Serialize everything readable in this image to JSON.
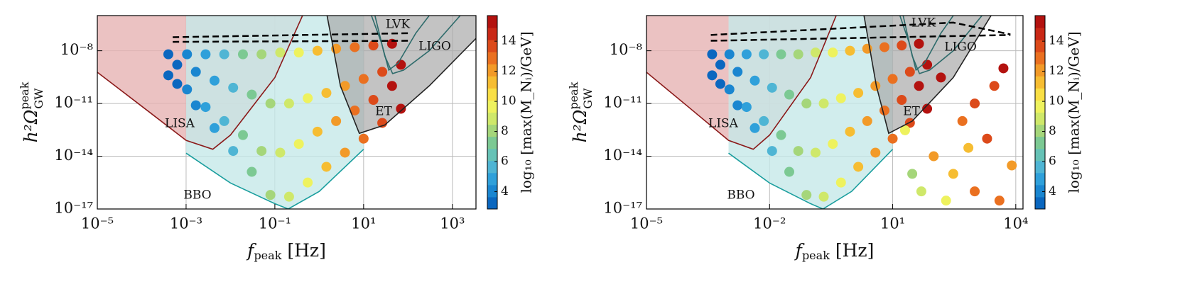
{
  "chart_data": [
    {
      "type": "scatter",
      "xlabel": {
        "symbol": "f",
        "sub": "peak",
        "unit": " [Hz]"
      },
      "ylabel": {
        "base": "h²Ω",
        "sub": "GW",
        "sup": "peak"
      },
      "xscale": "log",
      "yscale": "log",
      "grid": true,
      "xlim": [
        1e-05,
        3400
      ],
      "ylim": [
        1e-17,
        1e-06
      ],
      "xticks": [
        {
          "value": 1e-05,
          "label": "10⁻⁵"
        },
        {
          "value": 0.001,
          "label": "10⁻³"
        },
        {
          "value": 0.1,
          "label": "10⁻¹"
        },
        {
          "value": 10,
          "label": "10¹"
        },
        {
          "value": 1000,
          "label": "10³"
        }
      ],
      "yticks": [
        {
          "value": 1e-17,
          "label": "10⁻¹⁷"
        },
        {
          "value": 1e-14,
          "label": "10⁻¹⁴"
        },
        {
          "value": 1e-11,
          "label": "10⁻¹¹"
        },
        {
          "value": 1e-08,
          "label": "10⁻⁸"
        }
      ],
      "x": [
        0.000398,
        0.000631,
        0.000398,
        0.000631,
        0.00105,
        0.00166,
        0.00105,
        0.00166,
        0.00275,
        0.00437,
        0.00275,
        0.00437,
        0.00724,
        0.0115,
        0.00724,
        0.0115,
        0.0191,
        0.0302,
        0.0191,
        0.0302,
        0.0501,
        0.0794,
        0.0501,
        0.0794,
        0.132,
        0.209,
        0.132,
        0.209,
        0.347,
        0.55,
        0.347,
        0.55,
        0.912,
        1.45,
        0.912,
        1.45,
        2.4,
        3.8,
        2.4,
        3.8,
        6.31,
        10,
        6.31,
        10,
        16.6,
        26.3,
        16.6,
        26.3,
        43.7,
        69.2,
        43.7,
        69.2
      ],
      "values": [
        6.3e-09,
        1.6e-09,
        4e-10,
        1.3e-10,
        6.3e-09,
        6.3e-10,
        6.3e-11,
        7.9e-12,
        6.3e-09,
        2e-10,
        6.3e-12,
        4e-13,
        6.3e-09,
        7.9e-11,
        1e-12,
        2e-14,
        6.3e-09,
        3.2e-11,
        1.6e-13,
        1.3e-15,
        6.3e-09,
        1e-11,
        2e-14,
        6.3e-17,
        7.9e-09,
        1e-11,
        1.6e-14,
        5e-17,
        7.9e-09,
        2e-11,
        5e-14,
        3.2e-16,
        1e-08,
        4e-11,
        2.5e-13,
        2.5e-15,
        1.3e-08,
        1e-10,
        1e-12,
        1.6e-14,
        1.6e-08,
        2.5e-10,
        4e-12,
        1e-13,
        2e-08,
        6.3e-10,
        1.6e-11,
        7.9e-13,
        2.5e-08,
        1.6e-09,
        1e-10,
        5e-12
      ],
      "z": [
        3,
        3,
        3,
        3,
        4,
        4,
        4,
        4,
        5,
        5,
        5,
        5,
        6,
        6,
        6,
        6,
        7,
        7,
        7,
        7,
        8,
        8,
        8,
        8,
        9,
        9,
        9,
        9,
        10,
        10,
        10,
        10,
        11,
        11,
        11,
        11,
        12,
        12,
        12,
        12,
        13,
        13,
        13,
        13,
        14,
        14,
        14,
        14,
        15,
        15,
        15,
        15
      ],
      "curves": [
        {
          "name": "LISA",
          "color": "#8b1a1a",
          "fill": "#e6b3b3",
          "x": [
            1e-05,
            0.0001,
            0.001,
            0.004,
            0.01,
            0.1,
            0.42
          ],
          "values": [
            6e-10,
            7e-12,
            8e-14,
            2.5e-14,
            1.6e-13,
            3e-10,
            1e-06
          ]
        },
        {
          "name": "BBO",
          "color": "#1a9e9e",
          "fill": "#c6e8e9",
          "x": [
            0.001,
            0.01,
            0.1,
            0.2,
            1,
            10
          ],
          "values": [
            1.5e-14,
            3e-16,
            2e-17,
            1e-17,
            1e-16,
            2.5e-14
          ]
        },
        {
          "name": "ET",
          "color": "#222222",
          "fill": "#a9a9a9",
          "x": [
            1.5,
            3,
            8,
            30,
            300,
            3400
          ],
          "values": [
            1e-06,
            1e-10,
            2e-13,
            6e-13,
            1e-10,
            5e-08
          ]
        },
        {
          "name": "LVK",
          "color": "#2e6b6b",
          "x": [
            15,
            25,
            37,
            60,
            150,
            300
          ],
          "values": [
            1e-06,
            3e-08,
            8e-10,
            2e-09,
            1e-07,
            1e-06
          ]
        },
        {
          "name": "LIGO",
          "color": "#2e6b6b",
          "x": [
            18,
            30,
            45,
            80,
            300,
            1500
          ],
          "values": [
            1e-06,
            5e-09,
            5e-10,
            8e-10,
            1e-08,
            1e-06
          ]
        },
        {
          "color": "#000000",
          "dash": true,
          "x": [
            0.0005,
            117
          ],
          "values": [
            5.9e-08,
            1e-07
          ]
        },
        {
          "color": "#000000",
          "dash": true,
          "x": [
            0.0005,
            117
          ],
          "values": [
            3.2e-08,
            3.7e-08
          ]
        }
      ],
      "colorbar": {
        "label": "log₁₀ [max(M_Nᵢ)/GeV]",
        "clim": [
          2.85,
          15.7
        ],
        "ticks": [
          4,
          6,
          8,
          10,
          12,
          14
        ],
        "colormap": [
          "#0b67bf",
          "#1a86d0",
          "#2fa0da",
          "#4fb5d4",
          "#66c2b6",
          "#7cc993",
          "#a5d67a",
          "#cfe86a",
          "#eef25e",
          "#f9df45",
          "#f6bd32",
          "#f29a28",
          "#ea7020",
          "#dc4a1a",
          "#c92816",
          "#b3120f"
        ]
      }
    },
    {
      "type": "scatter",
      "xlabel": {
        "symbol": "f",
        "sub": "peak",
        "unit": " [Hz]"
      },
      "ylabel": {
        "base": "h²Ω",
        "sub": "GW",
        "sup": "peak"
      },
      "xscale": "log",
      "yscale": "log",
      "grid": true,
      "xlim": [
        1e-05,
        15000
      ],
      "ylim": [
        1e-17,
        1e-06
      ],
      "xticks": [
        {
          "value": 1e-05,
          "label": "10⁻⁵"
        },
        {
          "value": 0.01,
          "label": "10⁻²"
        },
        {
          "value": 10,
          "label": "10¹"
        },
        {
          "value": 10000,
          "label": "10⁴"
        }
      ],
      "yticks": [
        {
          "value": 1e-17,
          "label": "10⁻¹⁷"
        },
        {
          "value": 1e-14,
          "label": "10⁻¹⁴"
        },
        {
          "value": 1e-11,
          "label": "10⁻¹¹"
        },
        {
          "value": 1e-08,
          "label": "10⁻⁸"
        }
      ],
      "x": [
        0.000398,
        0.000631,
        0.000398,
        0.000631,
        0.00105,
        0.00166,
        0.00105,
        0.00166,
        0.00275,
        0.00437,
        0.00275,
        0.00437,
        0.00724,
        0.0115,
        0.00724,
        0.0115,
        0.0191,
        0.0302,
        0.0191,
        0.0302,
        0.0501,
        0.0794,
        0.0501,
        0.0794,
        0.132,
        0.209,
        0.132,
        0.209,
        0.347,
        0.55,
        0.347,
        0.55,
        0.912,
        1.45,
        0.912,
        1.45,
        2.4,
        3.8,
        2.4,
        3.8,
        6.31,
        10,
        6.31,
        10,
        16.6,
        26.3,
        16.6,
        26.3,
        43.7,
        69.2,
        43.7,
        69.2,
        100,
        300,
        1000,
        2000,
        50,
        3000,
        500,
        5000,
        200,
        30,
        1000,
        8000,
        20,
        150,
        700,
        4000
      ],
      "values": [
        6.3e-09,
        1.6e-09,
        4e-10,
        1.3e-10,
        6.3e-09,
        6.3e-10,
        6.3e-11,
        7.9e-12,
        6.3e-09,
        2e-10,
        6.3e-12,
        4e-13,
        6.3e-09,
        7.9e-11,
        1e-12,
        2e-14,
        6.3e-09,
        3.2e-11,
        1.6e-13,
        1.3e-15,
        6.3e-09,
        1e-11,
        2e-14,
        6.3e-17,
        7.9e-09,
        1e-11,
        1.6e-14,
        5e-17,
        7.9e-09,
        2e-11,
        5e-14,
        3.2e-16,
        1e-08,
        4e-11,
        2.5e-13,
        2.5e-15,
        1.3e-08,
        1e-10,
        1e-12,
        1.6e-14,
        1.6e-08,
        2.5e-10,
        4e-12,
        1e-13,
        2e-08,
        6.3e-10,
        1.6e-11,
        7.9e-13,
        2.5e-08,
        1.6e-09,
        1e-10,
        5e-12,
        1e-14,
        1e-15,
        1e-16,
        1e-13,
        1e-16,
        1e-10,
        1e-12,
        1e-09,
        3e-17,
        1e-15,
        1e-11,
        3e-15,
        3e-13,
        3e-10,
        3e-14,
        3e-17
      ],
      "z": [
        3,
        3,
        3,
        3,
        4,
        4,
        4,
        4,
        5,
        5,
        5,
        5,
        6,
        6,
        6,
        6,
        7,
        7,
        7,
        7,
        8,
        8,
        8,
        8,
        9,
        9,
        9,
        9,
        10,
        10,
        10,
        10,
        11,
        11,
        11,
        11,
        12,
        12,
        12,
        12,
        13,
        13,
        13,
        13,
        14,
        14,
        14,
        14,
        15,
        15,
        15,
        15,
        12,
        11,
        13,
        14,
        9,
        14,
        13,
        15,
        10,
        8,
        14,
        12,
        10,
        15,
        11,
        13
      ],
      "curves": [
        {
          "name": "LISA",
          "color": "#8b1a1a",
          "fill": "#e6b3b3",
          "x": [
            1e-05,
            0.0001,
            0.001,
            0.004,
            0.01,
            0.1,
            0.42
          ],
          "values": [
            6e-10,
            7e-12,
            8e-14,
            2.5e-14,
            1.6e-13,
            3e-10,
            1e-06
          ]
        },
        {
          "name": "BBO",
          "color": "#1a9e9e",
          "fill": "#c6e8e9",
          "x": [
            0.001,
            0.01,
            0.1,
            0.2,
            1,
            10
          ],
          "values": [
            1.5e-14,
            3e-16,
            2e-17,
            1e-17,
            1e-16,
            2.5e-14
          ]
        },
        {
          "name": "ET",
          "color": "#222222",
          "fill": "#a9a9a9",
          "x": [
            2,
            4,
            8,
            30,
            300,
            2500
          ],
          "values": [
            1e-06,
            1e-10,
            2e-13,
            1e-12,
            3e-10,
            1e-06
          ]
        },
        {
          "name": "LVK",
          "color": "#2e6b6b",
          "x": [
            15,
            25,
            37,
            60,
            150,
            300
          ],
          "values": [
            1e-06,
            3e-08,
            8e-10,
            2e-09,
            1e-07,
            1e-06
          ]
        },
        {
          "name": "LIGO",
          "color": "#2e6b6b",
          "x": [
            18,
            30,
            45,
            80,
            300,
            1500
          ],
          "values": [
            1e-06,
            5e-09,
            5e-10,
            8e-10,
            1e-08,
            1e-06
          ]
        },
        {
          "color": "#000000",
          "dash": true,
          "x": [
            0.00037,
            300,
            7400
          ],
          "values": [
            7.9e-08,
            4e-07,
            8.5e-08
          ]
        },
        {
          "color": "#000000",
          "dash": true,
          "x": [
            0.00037,
            7400
          ],
          "values": [
            3.7e-08,
            7.9e-08
          ]
        }
      ],
      "colorbar": {
        "label": "log₁₀ [max(M_Nᵢ)/GeV]",
        "clim": [
          2.85,
          15.7
        ],
        "ticks": [
          4,
          6,
          8,
          10,
          12,
          14
        ],
        "colormap": [
          "#0b67bf",
          "#1a86d0",
          "#2fa0da",
          "#4fb5d4",
          "#66c2b6",
          "#7cc993",
          "#a5d67a",
          "#cfe86a",
          "#eef25e",
          "#f9df45",
          "#f6bd32",
          "#f29a28",
          "#ea7020",
          "#dc4a1a",
          "#c92816",
          "#b3120f"
        ]
      }
    }
  ]
}
